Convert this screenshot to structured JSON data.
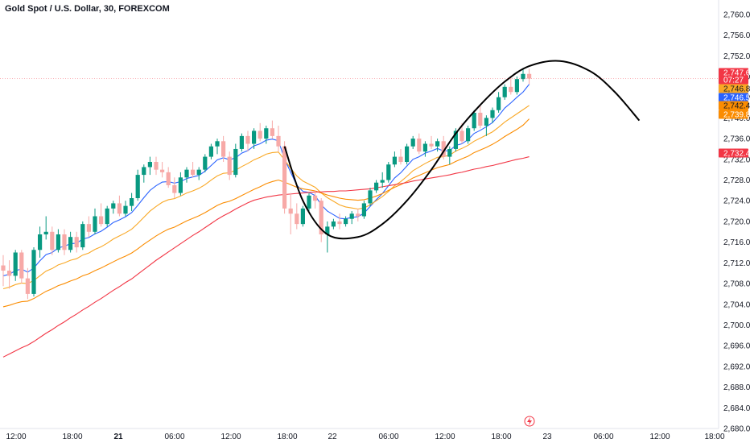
{
  "header": {
    "symbol_title": "Gold Spot / U.S. Dollar, 30, FOREXCOM"
  },
  "chart_data": {
    "type": "candlestick",
    "title": "Gold Spot / U.S. Dollar, 30, FOREXCOM",
    "ylim": [
      2680,
      2762
    ],
    "y_ticks": [
      2680,
      2684,
      2688,
      2692,
      2696,
      2700,
      2704,
      2708,
      2712,
      2716,
      2720,
      2724,
      2728,
      2732,
      2736,
      2740,
      2744,
      2748,
      2752,
      2756,
      2760
    ],
    "x_ticks": [
      {
        "label": "12:00",
        "bold": false
      },
      {
        "label": "18:00",
        "bold": false
      },
      {
        "label": "21",
        "bold": true
      },
      {
        "label": "06:00",
        "bold": false
      },
      {
        "label": "12:00",
        "bold": false
      },
      {
        "label": "18:00",
        "bold": false
      },
      {
        "label": "22",
        "bold": false
      },
      {
        "label": "06:00",
        "bold": false
      },
      {
        "label": "12:00",
        "bold": false
      },
      {
        "label": "18:00",
        "bold": false
      },
      {
        "label": "23",
        "bold": false
      },
      {
        "label": "06:00",
        "bold": false
      },
      {
        "label": "12:00",
        "bold": false
      },
      {
        "label": "18:00",
        "bold": false
      }
    ],
    "candles": [
      [
        2711.5,
        2713.5,
        2707.5,
        2710.5
      ],
      [
        2710.5,
        2712.5,
        2707.0,
        2709.5
      ],
      [
        2709.5,
        2714.5,
        2708.5,
        2714.0
      ],
      [
        2714.0,
        2714.5,
        2708.0,
        2709.0
      ],
      [
        2709.0,
        2711.0,
        2705.0,
        2706.0
      ],
      [
        2706.0,
        2715.0,
        2705.5,
        2714.5
      ],
      [
        2714.5,
        2719.0,
        2713.0,
        2717.5
      ],
      [
        2717.5,
        2721.0,
        2716.5,
        2718.0
      ],
      [
        2718.0,
        2719.0,
        2713.5,
        2714.5
      ],
      [
        2714.5,
        2718.5,
        2714.0,
        2717.5
      ],
      [
        2717.5,
        2718.5,
        2713.5,
        2714.5
      ],
      [
        2714.5,
        2718.0,
        2714.0,
        2717.0
      ],
      [
        2717.0,
        2718.0,
        2714.0,
        2715.0
      ],
      [
        2715.0,
        2720.0,
        2714.5,
        2719.5
      ],
      [
        2719.5,
        2721.0,
        2717.0,
        2718.0
      ],
      [
        2718.0,
        2722.5,
        2717.5,
        2721.0
      ],
      [
        2721.0,
        2723.5,
        2719.0,
        2719.5
      ],
      [
        2719.5,
        2723.0,
        2719.0,
        2722.5
      ],
      [
        2722.5,
        2724.0,
        2721.5,
        2723.5
      ],
      [
        2723.5,
        2725.0,
        2721.0,
        2721.5
      ],
      [
        2721.5,
        2724.0,
        2721.0,
        2723.0
      ],
      [
        2723.0,
        2725.5,
        2722.0,
        2724.5
      ],
      [
        2724.5,
        2730.0,
        2724.0,
        2729.0
      ],
      [
        2729.0,
        2731.0,
        2727.5,
        2730.5
      ],
      [
        2730.5,
        2732.5,
        2729.0,
        2731.5
      ],
      [
        2731.5,
        2732.5,
        2729.0,
        2730.0
      ],
      [
        2730.0,
        2731.5,
        2728.5,
        2729.5
      ],
      [
        2729.5,
        2730.5,
        2726.5,
        2727.0
      ],
      [
        2727.0,
        2728.5,
        2724.5,
        2725.5
      ],
      [
        2725.5,
        2729.5,
        2725.0,
        2728.5
      ],
      [
        2728.5,
        2730.5,
        2727.5,
        2730.0
      ],
      [
        2730.0,
        2731.5,
        2728.5,
        2729.0
      ],
      [
        2729.0,
        2730.5,
        2728.0,
        2730.0
      ],
      [
        2730.0,
        2733.0,
        2729.5,
        2732.5
      ],
      [
        2732.5,
        2735.0,
        2732.0,
        2734.5
      ],
      [
        2734.5,
        2736.0,
        2733.0,
        2735.5
      ],
      [
        2735.5,
        2736.5,
        2731.5,
        2732.5
      ],
      [
        2732.5,
        2733.5,
        2728.0,
        2729.0
      ],
      [
        2729.0,
        2735.0,
        2728.5,
        2734.0
      ],
      [
        2734.0,
        2737.0,
        2733.5,
        2736.5
      ],
      [
        2736.5,
        2737.5,
        2733.5,
        2735.0
      ],
      [
        2735.0,
        2738.0,
        2734.0,
        2737.5
      ],
      [
        2737.5,
        2739.0,
        2735.5,
        2736.0
      ],
      [
        2736.0,
        2738.5,
        2735.0,
        2738.0
      ],
      [
        2738.0,
        2739.5,
        2736.0,
        2736.5
      ],
      [
        2736.5,
        2738.5,
        2733.5,
        2734.5
      ],
      [
        2734.5,
        2735.5,
        2721.5,
        2722.5
      ],
      [
        2722.5,
        2725.5,
        2717.5,
        2721.5
      ],
      [
        2721.5,
        2723.5,
        2718.5,
        2719.5
      ],
      [
        2719.5,
        2723.0,
        2719.0,
        2722.5
      ],
      [
        2722.5,
        2725.5,
        2722.0,
        2725.0
      ],
      [
        2725.0,
        2726.0,
        2722.5,
        2724.0
      ],
      [
        2724.0,
        2724.5,
        2716.0,
        2717.5
      ],
      [
        2717.5,
        2720.0,
        2714.0,
        2719.0
      ],
      [
        2719.0,
        2720.5,
        2718.5,
        2720.0
      ],
      [
        2720.0,
        2721.5,
        2718.5,
        2719.5
      ],
      [
        2719.5,
        2721.0,
        2719.0,
        2720.5
      ],
      [
        2720.5,
        2722.0,
        2719.5,
        2721.5
      ],
      [
        2721.5,
        2722.5,
        2720.0,
        2721.0
      ],
      [
        2721.0,
        2724.0,
        2720.5,
        2723.5
      ],
      [
        2723.5,
        2726.5,
        2723.0,
        2726.0
      ],
      [
        2726.0,
        2728.0,
        2725.5,
        2727.5
      ],
      [
        2727.5,
        2729.5,
        2726.5,
        2728.0
      ],
      [
        2728.0,
        2731.5,
        2727.5,
        2731.0
      ],
      [
        2731.0,
        2733.5,
        2730.5,
        2732.5
      ],
      [
        2732.5,
        2734.0,
        2731.0,
        2731.5
      ],
      [
        2731.5,
        2735.0,
        2731.0,
        2734.5
      ],
      [
        2734.5,
        2736.5,
        2734.0,
        2736.0
      ],
      [
        2736.0,
        2737.0,
        2733.0,
        2733.5
      ],
      [
        2733.5,
        2735.5,
        2732.5,
        2735.0
      ],
      [
        2735.0,
        2736.5,
        2734.0,
        2734.5
      ],
      [
        2734.5,
        2736.0,
        2733.5,
        2735.5
      ],
      [
        2735.5,
        2736.5,
        2732.0,
        2732.5
      ],
      [
        2732.5,
        2734.5,
        2731.0,
        2734.0
      ],
      [
        2734.0,
        2738.0,
        2733.5,
        2737.5
      ],
      [
        2737.5,
        2739.0,
        2735.0,
        2735.5
      ],
      [
        2735.5,
        2738.5,
        2735.0,
        2738.0
      ],
      [
        2738.0,
        2741.5,
        2737.5,
        2741.0
      ],
      [
        2741.0,
        2742.5,
        2738.0,
        2738.5
      ],
      [
        2738.5,
        2740.5,
        2736.5,
        2740.0
      ],
      [
        2740.0,
        2742.0,
        2739.0,
        2741.5
      ],
      [
        2741.5,
        2745.0,
        2741.0,
        2744.0
      ],
      [
        2744.0,
        2746.5,
        2743.5,
        2746.0
      ],
      [
        2746.0,
        2748.0,
        2744.5,
        2745.0
      ],
      [
        2745.0,
        2748.0,
        2744.5,
        2747.5
      ],
      [
        2747.5,
        2749.5,
        2747.0,
        2748.5
      ],
      [
        2748.5,
        2749.5,
        2746.5,
        2747.6
      ]
    ],
    "ma_lines": [
      {
        "color": "#2962ff",
        "values": [
          2709.5,
          2709.8,
          2710.5,
          2710.8,
          2710.2,
          2711.0,
          2712.4,
          2713.6,
          2714.0,
          2714.9,
          2715.2,
          2715.7,
          2715.8,
          2716.6,
          2716.9,
          2717.6,
          2718.1,
          2718.9,
          2719.8,
          2720.3,
          2720.9,
          2721.7,
          2723.1,
          2724.6,
          2726.0,
          2726.9,
          2727.6,
          2727.7,
          2727.4,
          2727.7,
          2728.3,
          2728.6,
          2728.9,
          2729.7,
          2730.8,
          2731.9,
          2732.3,
          2731.9,
          2732.3,
          2733.2,
          2733.7,
          2734.6,
          2735.0,
          2735.7,
          2735.9,
          2735.6,
          2732.1,
          2729.5,
          2727.0,
          2725.8,
          2725.6,
          2725.0,
          2723.2,
          2722.0,
          2721.3,
          2720.6,
          2720.5,
          2720.8,
          2720.9,
          2721.6,
          2722.9,
          2724.2,
          2725.4,
          2726.9,
          2728.4,
          2729.4,
          2730.7,
          2732.0,
          2732.5,
          2733.2,
          2733.6,
          2734.1,
          2733.6,
          2733.7,
          2734.7,
          2735.0,
          2735.8,
          2737.0,
          2737.6,
          2738.3,
          2739.1,
          2740.4,
          2741.9,
          2742.9,
          2744.0,
          2745.0,
          2746.5
        ]
      },
      {
        "color": "#f9a825",
        "values": [
          2707.0,
          2707.3,
          2707.8,
          2708.1,
          2708.0,
          2708.6,
          2709.5,
          2710.4,
          2710.9,
          2711.6,
          2712.0,
          2712.5,
          2712.8,
          2713.5,
          2713.9,
          2714.6,
          2715.1,
          2715.8,
          2716.6,
          2717.2,
          2717.8,
          2718.5,
          2719.6,
          2720.8,
          2722.0,
          2722.9,
          2723.7,
          2724.2,
          2724.4,
          2724.9,
          2725.5,
          2725.9,
          2726.4,
          2727.1,
          2728.0,
          2728.8,
          2729.3,
          2729.4,
          2729.9,
          2730.6,
          2731.2,
          2731.9,
          2732.4,
          2733.0,
          2733.3,
          2733.4,
          2731.9,
          2730.3,
          2728.8,
          2727.8,
          2727.2,
          2726.6,
          2725.5,
          2724.6,
          2723.9,
          2723.2,
          2722.8,
          2722.6,
          2722.4,
          2722.6,
          2723.2,
          2724.0,
          2724.8,
          2725.8,
          2726.9,
          2727.7,
          2728.7,
          2729.8,
          2730.5,
          2731.2,
          2731.8,
          2732.4,
          2732.5,
          2732.8,
          2733.6,
          2734.1,
          2734.7,
          2735.5,
          2736.1,
          2736.7,
          2737.3,
          2738.2,
          2739.2,
          2740.0,
          2740.8,
          2741.6,
          2742.4
        ]
      },
      {
        "color": "#fb8c00",
        "values": [
          2703.5,
          2703.8,
          2704.2,
          2704.5,
          2704.6,
          2705.1,
          2705.8,
          2706.5,
          2707.0,
          2707.6,
          2708.0,
          2708.5,
          2708.9,
          2709.5,
          2709.9,
          2710.5,
          2711.0,
          2711.6,
          2712.2,
          2712.8,
          2713.3,
          2713.9,
          2714.7,
          2715.6,
          2716.4,
          2717.2,
          2717.9,
          2718.5,
          2718.9,
          2719.5,
          2720.1,
          2720.6,
          2721.1,
          2721.7,
          2722.4,
          2723.1,
          2723.6,
          2723.9,
          2724.4,
          2725.0,
          2725.6,
          2726.2,
          2726.7,
          2727.3,
          2727.7,
          2728.0,
          2727.6,
          2727.1,
          2726.6,
          2726.3,
          2726.1,
          2725.9,
          2725.5,
          2725.1,
          2724.8,
          2724.5,
          2724.3,
          2724.2,
          2724.1,
          2724.2,
          2724.5,
          2724.9,
          2725.4,
          2726.0,
          2726.6,
          2727.1,
          2727.7,
          2728.4,
          2728.9,
          2729.4,
          2729.9,
          2730.4,
          2730.7,
          2731.0,
          2731.6,
          2732.1,
          2732.6,
          2733.3,
          2733.8,
          2734.3,
          2734.9,
          2735.6,
          2736.4,
          2737.1,
          2737.8,
          2738.6,
          2739.8
        ]
      },
      {
        "color": "#f23645",
        "values": [
          2693.8,
          2694.4,
          2695.0,
          2695.6,
          2696.1,
          2696.8,
          2697.6,
          2698.4,
          2699.1,
          2699.9,
          2700.6,
          2701.4,
          2702.1,
          2702.9,
          2703.6,
          2704.4,
          2705.1,
          2705.9,
          2706.7,
          2707.4,
          2708.2,
          2708.9,
          2709.8,
          2710.7,
          2711.6,
          2712.5,
          2713.3,
          2714.1,
          2714.9,
          2715.7,
          2716.5,
          2717.3,
          2718.0,
          2718.8,
          2719.6,
          2720.4,
          2721.1,
          2721.7,
          2722.4,
          2723.0,
          2723.6,
          2724.1,
          2724.4,
          2724.7,
          2724.9,
          2725.1,
          2725.2,
          2725.3,
          2725.4,
          2725.5,
          2725.6,
          2725.7,
          2725.7,
          2725.8,
          2725.8,
          2725.9,
          2725.9,
          2726.0,
          2726.1,
          2726.2,
          2726.3,
          2726.5,
          2726.7,
          2726.9,
          2727.1,
          2727.3,
          2727.5,
          2727.8,
          2728.0,
          2728.2,
          2728.4,
          2728.6,
          2728.8,
          2729.0,
          2729.3,
          2729.5,
          2729.8,
          2730.1,
          2730.3,
          2730.6,
          2730.8,
          2731.1,
          2731.4,
          2731.7,
          2732.0,
          2732.2,
          2732.5
        ]
      }
    ],
    "projection_curve": [
      [
        46,
        2734.5
      ],
      [
        49,
        2724.0
      ],
      [
        53,
        2717.5
      ],
      [
        58,
        2717.0
      ],
      [
        62,
        2719.5
      ],
      [
        66,
        2724.0
      ],
      [
        70,
        2730.0
      ],
      [
        74,
        2737.0
      ],
      [
        78,
        2742.5
      ],
      [
        82,
        2747.0
      ],
      [
        86,
        2750.0
      ],
      [
        91,
        2751.0
      ],
      [
        96,
        2749.0
      ],
      [
        100,
        2745.0
      ],
      [
        104,
        2739.5
      ]
    ],
    "price_badges": [
      {
        "value": "2,747.60",
        "color": "#f23645",
        "text_dark": false
      },
      {
        "value": "07:27",
        "color": "#f23645",
        "text_dark": false
      },
      {
        "value": "2,746.85",
        "color": "#f9a825",
        "text_dark": true
      },
      {
        "value": "2,746.50",
        "color": "#2962ff",
        "text_dark": false
      },
      {
        "value": "2,742.40",
        "color": "#fb8c00",
        "text_dark": true
      },
      {
        "value": "2,739.81",
        "color": "#fb8c00",
        "text_dark": false
      },
      {
        "value": "2,732.48",
        "color": "#f23645",
        "text_dark": false
      }
    ],
    "up_color": "#089981",
    "down_color": "#f7a9a7",
    "grid": false
  }
}
